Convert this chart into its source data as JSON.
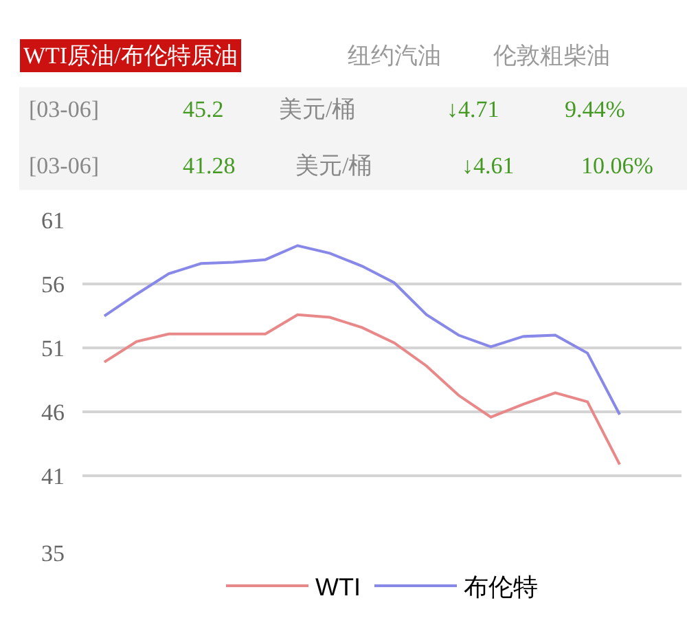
{
  "chart_data": {
    "type": "line",
    "annotations": [
      "WTI原油/布伦特原油",
      "纽约汽油",
      "伦敦粗柴油",
      "[03-06]",
      "45.2",
      "美元/桶",
      "↓4.71",
      "9.44%",
      "[03-06]",
      "41.28",
      "美元/桶",
      "↓4.61",
      "10.06%"
    ],
    "categories": [
      null,
      null,
      null,
      null,
      null,
      null,
      null,
      null,
      null,
      null,
      null,
      null,
      null,
      null,
      null,
      null,
      null
    ],
    "series": [
      {
        "name": "WTI",
        "color": "#e88888",
        "values": [
          49.9,
          51.5,
          52.1,
          52.1,
          52.1,
          52.1,
          53.6,
          53.4,
          52.6,
          51.4,
          49.6,
          47.3,
          45.6,
          46.6,
          47.5,
          46.8,
          41.9
        ]
      },
      {
        "name": "布伦特",
        "color": "#8888e8",
        "values": [
          53.5,
          55.2,
          56.8,
          57.6,
          57.7,
          57.9,
          59.0,
          58.4,
          57.4,
          56.1,
          53.6,
          52.0,
          51.1,
          51.9,
          52.0,
          50.6,
          45.8
        ]
      }
    ],
    "ylim": [
      35,
      61
    ],
    "yticks": [
      35,
      41,
      46,
      51,
      56,
      61
    ],
    "grid": "y",
    "legend": "bottom"
  }
}
